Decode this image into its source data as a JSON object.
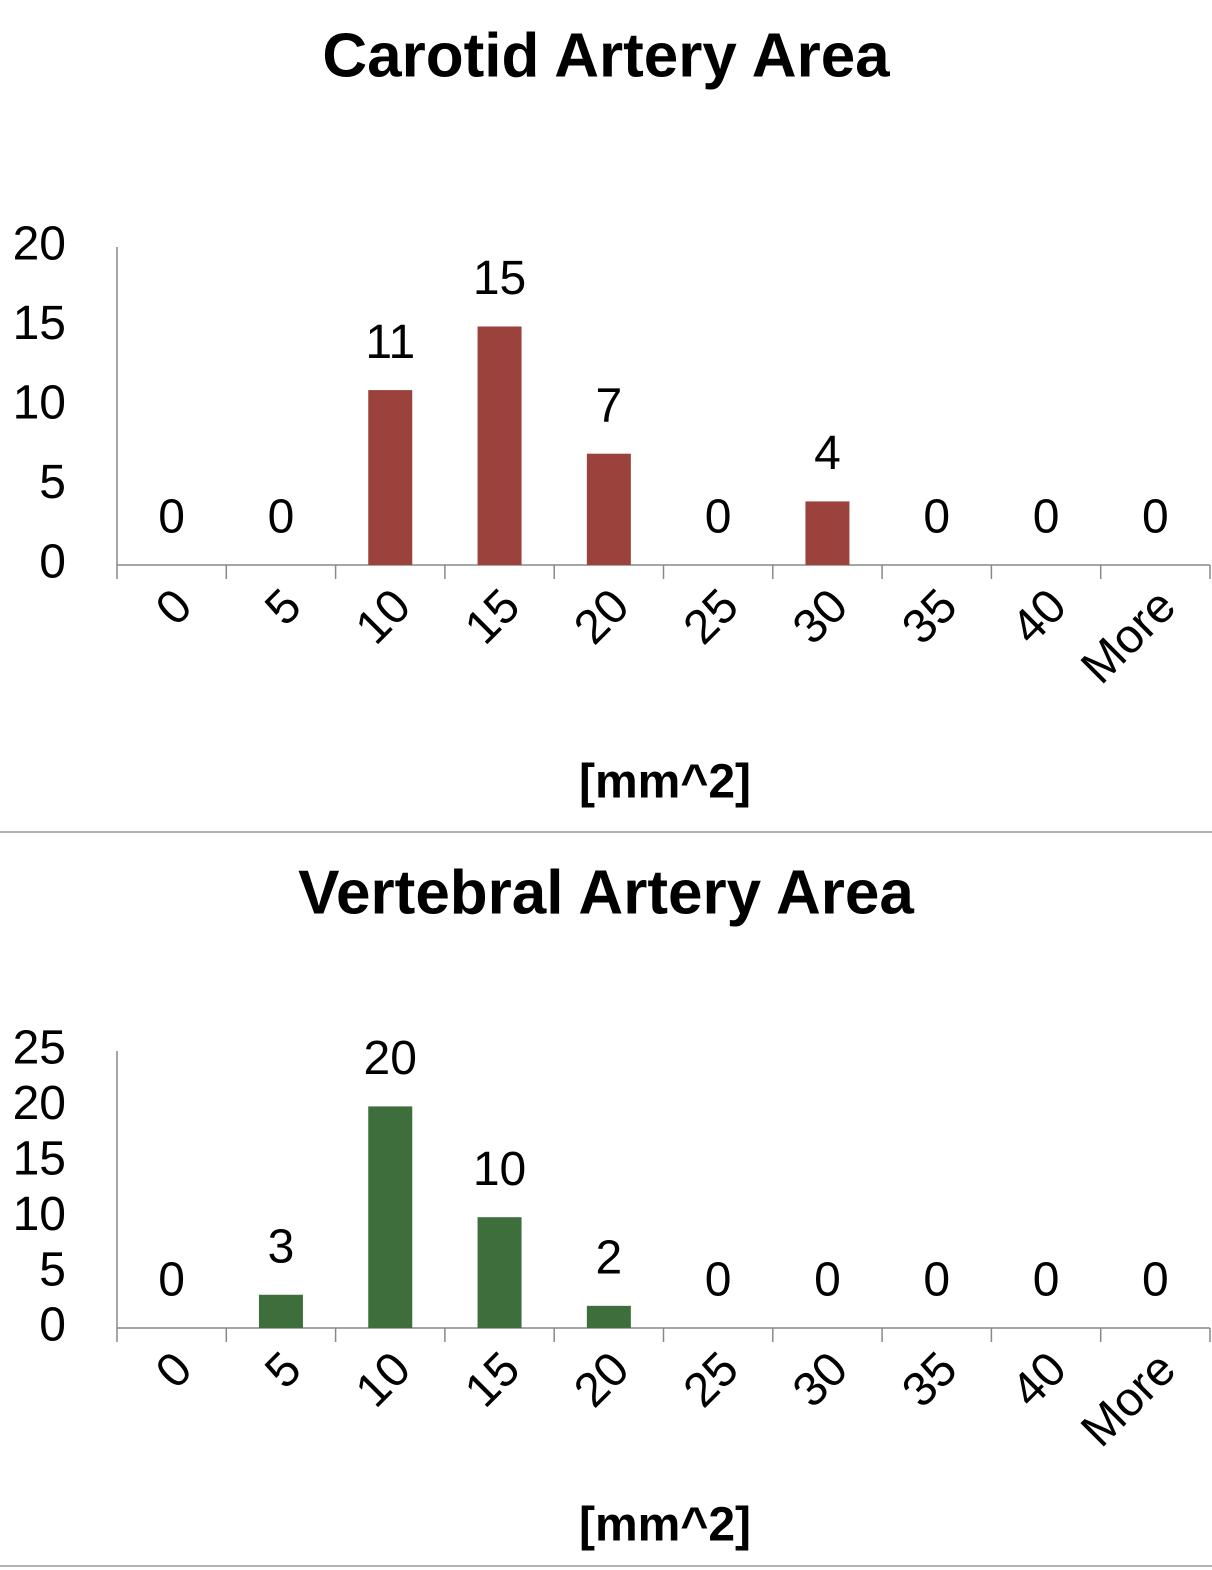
{
  "chart_data": [
    {
      "type": "bar",
      "title": "Carotid Artery Area",
      "xlabel": "[mm^2]",
      "categories": [
        "0",
        "5",
        "10",
        "15",
        "20",
        "25",
        "30",
        "35",
        "40",
        "More"
      ],
      "values": [
        0,
        0,
        11,
        15,
        7,
        0,
        4,
        0,
        0,
        0
      ],
      "color": "#9b423d",
      "ylim": [
        0,
        20
      ],
      "yticks": [
        0,
        5,
        10,
        15,
        20
      ],
      "grid": false
    },
    {
      "type": "bar",
      "title": "Vertebral Artery Area",
      "xlabel": "[mm^2]",
      "categories": [
        "0",
        "5",
        "10",
        "15",
        "20",
        "25",
        "30",
        "35",
        "40",
        "More"
      ],
      "values": [
        0,
        3,
        20,
        10,
        2,
        0,
        0,
        0,
        0,
        0
      ],
      "color": "#3d6e3b",
      "ylim": [
        0,
        25
      ],
      "yticks": [
        0,
        5,
        10,
        15,
        20,
        25
      ],
      "grid": false
    }
  ]
}
